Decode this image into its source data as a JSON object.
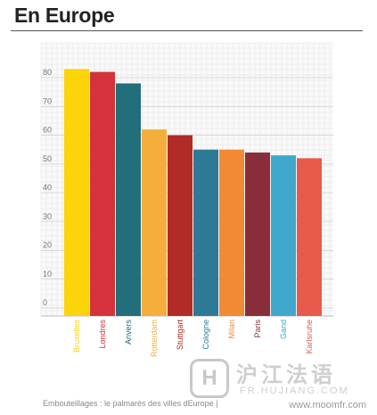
{
  "page": {
    "title": "En Europe"
  },
  "caption": "Embouteillages : le palmarès des villes dEurope |",
  "watermark": {
    "logo": "H",
    "name": "沪江法语",
    "site": "FR.HUJIANG.COM",
    "url": "www.moomfr.com"
  },
  "chart_data": {
    "type": "bar",
    "title": "",
    "xlabel": "",
    "ylabel": "",
    "ylim": [
      0,
      85
    ],
    "yticks": [
      0,
      10,
      20,
      30,
      40,
      50,
      60,
      70,
      80
    ],
    "grid": true,
    "categories": [
      "Bruxelles",
      "Londres",
      "Anvers",
      "Rotterdam",
      "Stuttgart",
      "Cologne",
      "Milan",
      "Paris",
      "Gand",
      "Karlsruhe"
    ],
    "values": [
      83,
      82,
      78,
      62,
      60,
      55,
      55,
      54,
      53,
      52
    ],
    "colors": [
      "#FDD30A",
      "#D5323B",
      "#236E7B",
      "#F5AE3C",
      "#B22B26",
      "#2E7995",
      "#F28A33",
      "#8A2D3A",
      "#3FA8CC",
      "#E75A4C"
    ]
  }
}
